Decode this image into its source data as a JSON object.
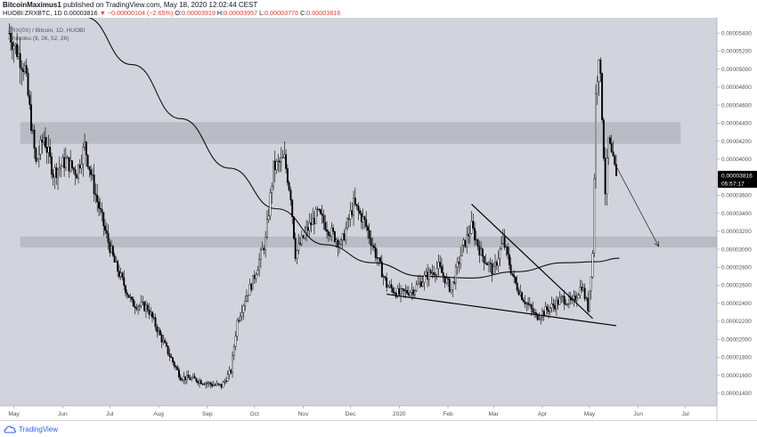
{
  "header": {
    "author": "BitcoinMaximus1",
    "published_text": "published on TradingView.com, May 18, 2020 12:02:44 CEST",
    "symbol_line": "HUOBI:ZRXBTC, 1D",
    "ohlc": {
      "last": "0.00003816",
      "change": "▼ −0.00000104 (−2.65%)",
      "open_label": "O:",
      "open": "0.00003919",
      "high_label": "H:",
      "high": "0.00003957",
      "low_label": "L:",
      "low": "0.00003776",
      "close_label": "C:",
      "close": "0.00003816"
    }
  },
  "legend": {
    "pair_line": "ZRX(0X) / Bitcoin, 1D, HUOBI",
    "indicator_line": "Ichimoku (9, 26, 52, 26)"
  },
  "footer": {
    "brand": "TradingView"
  },
  "colors": {
    "background": "#d1d4dc",
    "resistance_zone": "#b6b9c1",
    "candle": "#000000",
    "price_label_bg": "#000000",
    "arrow": "#333333"
  },
  "chart_data": {
    "type": "candlestick",
    "symbol": "ZRXBTC",
    "exchange": "HUOBI",
    "timeframe": "1D",
    "x_tick_labels": [
      "May",
      "Jun",
      "Jul",
      "Aug",
      "Sep",
      "Oct",
      "Nov",
      "Dec",
      "2020",
      "Feb",
      "Mar",
      "Apr",
      "May",
      "Jun",
      "Jul"
    ],
    "x_tick_dates": [
      "2019-05-01",
      "2019-06-01",
      "2019-07-01",
      "2019-08-01",
      "2019-09-01",
      "2019-10-01",
      "2019-11-01",
      "2019-12-01",
      "2020-01-01",
      "2020-02-01",
      "2020-03-01",
      "2020-04-01",
      "2020-05-01",
      "2020-06-01",
      "2020-07-01"
    ],
    "y_tick_values": [
      1.4e-05,
      1.6e-05,
      1.8e-05,
      2e-05,
      2.2e-05,
      2.4e-05,
      2.6e-05,
      2.8e-05,
      3e-05,
      3.2e-05,
      3.4e-05,
      3.6e-05,
      3.8e-05,
      4e-05,
      4.2e-05,
      4.4e-05,
      4.6e-05,
      4.8e-05,
      5e-05,
      5.2e-05,
      5.4e-05
    ],
    "y_tick_labels": [
      "0.00001400",
      "0.00001600",
      "0.00001800",
      "0.00002000",
      "0.00002200",
      "0.00002400",
      "0.00002600",
      "0.00002800",
      "0.00003000",
      "0.00003200",
      "0.00003400",
      "0.00003600",
      "0.00003800",
      "0.00004000",
      "0.00004200",
      "0.00004400",
      "0.00004600",
      "0.00004800",
      "0.00005000",
      "0.00005200",
      "0.00005400"
    ],
    "ylim": [
      1.26e-05,
      5.57e-05
    ],
    "xlim": [
      "2019-04-25",
      "2020-07-21"
    ],
    "current_price_label": "0.00003816",
    "countdown_label": "05:57:17",
    "current_price": 3.816e-05,
    "price_path": [
      [
        "2019-04-28",
        5.4e-05
      ],
      [
        "2019-05-08",
        5e-05
      ],
      [
        "2019-05-15",
        3.95e-05
      ],
      [
        "2019-05-20",
        4.25e-05
      ],
      [
        "2019-05-26",
        3.85e-05
      ],
      [
        "2019-06-03",
        3.98e-05
      ],
      [
        "2019-06-10",
        3.85e-05
      ],
      [
        "2019-06-15",
        4.15e-05
      ],
      [
        "2019-06-22",
        3.6e-05
      ],
      [
        "2019-06-28",
        3.2e-05
      ],
      [
        "2019-07-04",
        2.85e-05
      ],
      [
        "2019-07-15",
        2.4e-05
      ],
      [
        "2019-07-25",
        2.35e-05
      ],
      [
        "2019-08-03",
        2e-05
      ],
      [
        "2019-08-10",
        1.75e-05
      ],
      [
        "2019-08-15",
        1.58e-05
      ],
      [
        "2019-08-25",
        1.55e-05
      ],
      [
        "2019-09-03",
        1.5e-05
      ],
      [
        "2019-09-10",
        1.48e-05
      ],
      [
        "2019-09-16",
        1.65e-05
      ],
      [
        "2019-09-20",
        2.2e-05
      ],
      [
        "2019-09-25",
        2.45e-05
      ],
      [
        "2019-09-30",
        2.65e-05
      ],
      [
        "2019-10-08",
        3.1e-05
      ],
      [
        "2019-10-13",
        3.9e-05
      ],
      [
        "2019-10-20",
        4e-05
      ],
      [
        "2019-10-24",
        3.6e-05
      ],
      [
        "2019-10-27",
        2.95e-05
      ],
      [
        "2019-11-03",
        3.2e-05
      ],
      [
        "2019-11-10",
        3.4e-05
      ],
      [
        "2019-11-18",
        3.2e-05
      ],
      [
        "2019-11-25",
        3.05e-05
      ],
      [
        "2019-12-03",
        3.5e-05
      ],
      [
        "2019-12-10",
        3.3e-05
      ],
      [
        "2019-12-16",
        3e-05
      ],
      [
        "2019-12-24",
        2.6e-05
      ],
      [
        "2020-01-01",
        2.5e-05
      ],
      [
        "2020-01-10",
        2.55e-05
      ],
      [
        "2020-01-18",
        2.7e-05
      ],
      [
        "2020-01-26",
        2.8e-05
      ],
      [
        "2020-02-03",
        2.55e-05
      ],
      [
        "2020-02-10",
        3e-05
      ],
      [
        "2020-02-16",
        3.25e-05
      ],
      [
        "2020-02-22",
        2.95e-05
      ],
      [
        "2020-03-01",
        2.75e-05
      ],
      [
        "2020-03-07",
        3.1e-05
      ],
      [
        "2020-03-14",
        2.65e-05
      ],
      [
        "2020-03-20",
        2.45e-05
      ],
      [
        "2020-03-28",
        2.25e-05
      ],
      [
        "2020-04-06",
        2.35e-05
      ],
      [
        "2020-04-14",
        2.45e-05
      ],
      [
        "2020-04-20",
        2.4e-05
      ],
      [
        "2020-04-26",
        2.6e-05
      ],
      [
        "2020-04-30",
        2.35e-05
      ],
      [
        "2020-05-03",
        2.95e-05
      ],
      [
        "2020-05-05",
        4.7e-05
      ],
      [
        "2020-05-07",
        5.2e-05
      ],
      [
        "2020-05-09",
        4.5e-05
      ],
      [
        "2020-05-11",
        3.65e-05
      ],
      [
        "2020-05-13",
        4.2e-05
      ],
      [
        "2020-05-16",
        3.95e-05
      ],
      [
        "2020-05-18",
        3.816e-05
      ]
    ],
    "moving_average": [
      [
        "2019-06-15",
        5.58e-05
      ],
      [
        "2019-07-15",
        5.05e-05
      ],
      [
        "2019-08-15",
        4.45e-05
      ],
      [
        "2019-09-15",
        3.9e-05
      ],
      [
        "2019-10-15",
        3.45e-05
      ],
      [
        "2019-11-15",
        3.05e-05
      ],
      [
        "2019-12-15",
        2.85e-05
      ],
      [
        "2020-01-15",
        2.7e-05
      ],
      [
        "2020-02-15",
        2.68e-05
      ],
      [
        "2020-03-15",
        2.75e-05
      ],
      [
        "2020-04-15",
        2.85e-05
      ],
      [
        "2020-05-05",
        2.86e-05
      ],
      [
        "2020-05-20",
        2.9e-05
      ]
    ],
    "zones": [
      {
        "y_low": 4.17e-05,
        "y_high": 4.41e-05,
        "x_start": "2019-05-05",
        "x_end": "2020-06-28"
      },
      {
        "y_low": 3.02e-05,
        "y_high": 3.14e-05,
        "x_start": "2019-05-05",
        "x_end": "2020-07-21"
      }
    ],
    "trendlines": [
      {
        "from": [
          "2019-12-24",
          2.5e-05
        ],
        "to": [
          "2020-05-18",
          2.15e-05
        ]
      },
      {
        "from": [
          "2020-02-16",
          3.5e-05
        ],
        "to": [
          "2020-05-03",
          2.23e-05
        ]
      }
    ],
    "projection_arrow": {
      "from": [
        "2020-05-18",
        3.92e-05
      ],
      "to": [
        "2020-06-14",
        3.03e-05
      ]
    }
  }
}
